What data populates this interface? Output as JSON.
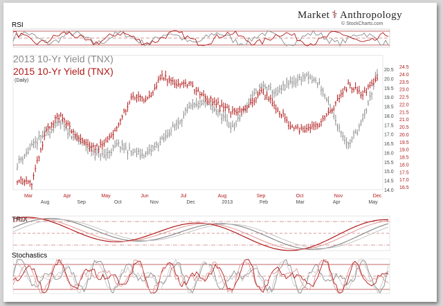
{
  "brand": {
    "left": "Market",
    "right": "Anthropology",
    "symbol": "⚕",
    "credit": "© StockCharts.com"
  },
  "panels": {
    "rsi": "RSI",
    "trix": "TRIX",
    "stochastics": "Stochastics"
  },
  "colors": {
    "series_2013": "#8a8a8a",
    "series_2015": "#b01818",
    "background": "#ffffff",
    "grid_red": "#b03030"
  },
  "chart_data": {
    "type": "ohlc",
    "title_2013": "2013 10-Yr Yield (TNX)",
    "title_2015": "2015 10-Yr Yield (TNX)",
    "subtitle": "(Daily)",
    "x_top_labels_2015": [
      "Mar",
      "Apr",
      "May",
      "Jun",
      "Jul",
      "Aug",
      "Sep",
      "Oct",
      "Nov",
      "Dec"
    ],
    "x_bottom_labels_2013": [
      "Aug",
      "Sep",
      "Oct",
      "Nov",
      "Dec",
      "2013",
      "Feb",
      "Mar",
      "Apr",
      "May"
    ],
    "y_left_2013_ticks": [
      "14.0",
      "14.5",
      "15.0",
      "15.5",
      "16.0",
      "16.5",
      "17.0",
      "17.5",
      "18.0",
      "18.5",
      "19.0",
      "19.5",
      "20.0",
      "20.5"
    ],
    "y_right_2015_ticks": [
      "16.5",
      "17.0",
      "17.5",
      "18.0",
      "18.5",
      "19.0",
      "19.5",
      "20.0",
      "20.5",
      "21.0",
      "21.5",
      "22.0",
      "22.5",
      "23.0",
      "23.5",
      "24.0",
      "24.5"
    ],
    "ylim_2013": [
      14.0,
      20.5
    ],
    "ylim_2015": [
      16.5,
      24.5
    ],
    "series": [
      {
        "name": "2013 10-Yr Yield (TNX)",
        "key": "s2013",
        "x": [
          0,
          4,
          8,
          12,
          16,
          20,
          24,
          28,
          32,
          36,
          40,
          44,
          48,
          52,
          56,
          60,
          64,
          68,
          72,
          76,
          80,
          84,
          88,
          92,
          96,
          100
        ],
        "close": [
          15.4,
          16.3,
          17.1,
          17.6,
          16.8,
          16.2,
          15.8,
          16.4,
          16.0,
          15.9,
          16.6,
          17.5,
          18.4,
          18.7,
          18.2,
          17.3,
          18.6,
          19.6,
          19.2,
          19.8,
          20.1,
          19.7,
          17.9,
          16.4,
          17.7,
          20.2
        ]
      },
      {
        "name": "2015 10-Yr Yield (TNX)",
        "key": "s2015",
        "x": [
          0,
          4,
          8,
          12,
          16,
          20,
          24,
          28,
          32,
          36,
          40,
          44,
          48,
          52,
          56,
          60,
          64,
          68,
          72,
          76,
          80,
          84,
          88,
          92,
          96,
          100
        ],
        "close": [
          17.0,
          16.8,
          20.2,
          21.3,
          20.0,
          19.1,
          19.2,
          20.6,
          22.5,
          22.2,
          23.9,
          23.4,
          23.3,
          22.4,
          22.0,
          21.4,
          21.9,
          22.8,
          21.8,
          20.5,
          20.2,
          20.6,
          21.9,
          23.3,
          22.7,
          23.6
        ]
      }
    ],
    "rsi": {
      "levels": [
        70,
        50,
        30
      ]
    },
    "trix": {
      "levels": [
        0
      ]
    },
    "stochastics": {
      "levels": [
        80,
        50,
        20
      ]
    }
  }
}
